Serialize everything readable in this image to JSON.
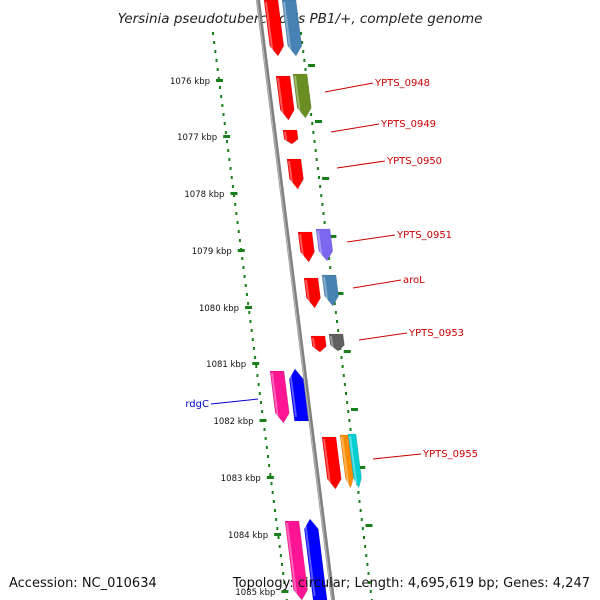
{
  "title": "Yersinia pseudotuberculosis PB1/+, complete genome",
  "footer": {
    "accession": "Accession: NC_010634",
    "topology": "Topology: circular; Length: 4,695,619 bp; Genes: 4,247"
  },
  "colors": {
    "backbone": "#808080",
    "tick": "#1a7f1a",
    "label_red": "#cc0000",
    "label_blue": "#0000cc",
    "cds": "#ff0000",
    "blue_gene": "#0000ff",
    "magenta_gene": "#ff1493",
    "steel": "#4682b4",
    "olive": "#6b8e23",
    "purple": "#7b68ee",
    "gray": "#606060",
    "orange": "#ff8c00",
    "cyan": "#00ced1"
  },
  "kbp_ticks": [
    {
      "label": "1076 kbp"
    },
    {
      "label": "1077 kbp"
    },
    {
      "label": "1078 kbp"
    },
    {
      "label": "1079 kbp"
    },
    {
      "label": "1080 kbp"
    },
    {
      "label": "1081 kbp"
    },
    {
      "label": "1082 kbp"
    },
    {
      "label": "1083 kbp"
    },
    {
      "label": "1084 kbp"
    },
    {
      "label": "1085 kbp"
    }
  ],
  "gene_labels": [
    {
      "name": "YPTS_0948",
      "color": "#cc0000"
    },
    {
      "name": "YPTS_0949",
      "color": "#cc0000"
    },
    {
      "name": "YPTS_0950",
      "color": "#cc0000"
    },
    {
      "name": "YPTS_0951",
      "color": "#cc0000"
    },
    {
      "name": "aroL",
      "color": "#cc0000"
    },
    {
      "name": "YPTS_0953",
      "color": "#cc0000"
    },
    {
      "name": "rdgC",
      "color": "#0000cc"
    },
    {
      "name": "YPTS_0955",
      "color": "#cc0000"
    }
  ]
}
